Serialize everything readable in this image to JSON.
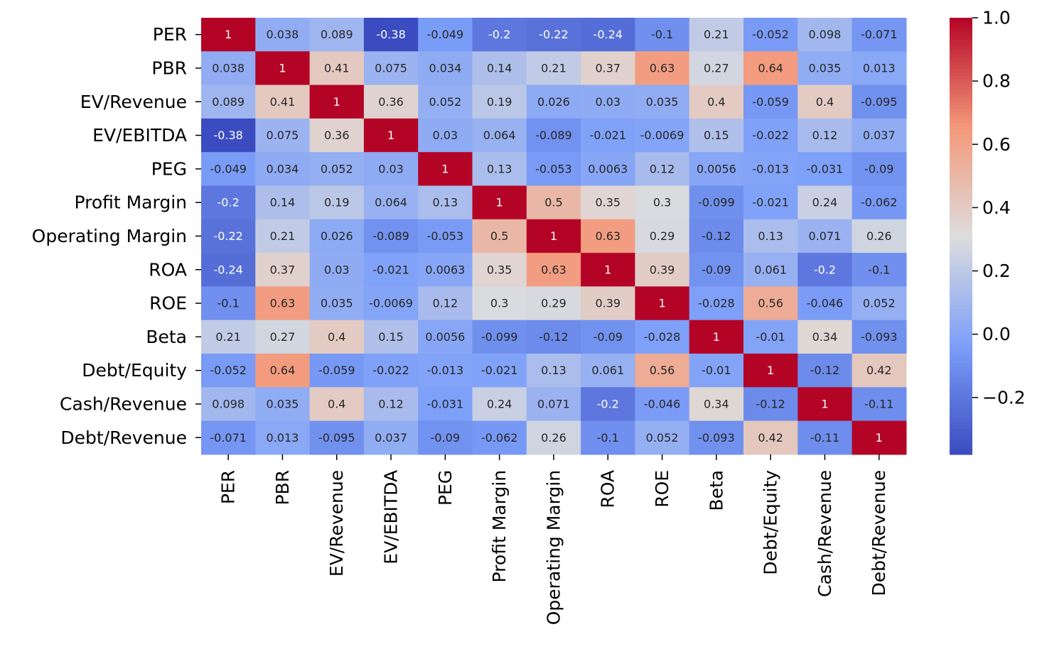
{
  "chart_data": {
    "type": "heatmap",
    "title": "",
    "labels": [
      "PER",
      "PBR",
      "EV/Revenue",
      "EV/EBITDA",
      "PEG",
      "Profit Margin",
      "Operating Margin",
      "ROA",
      "ROE",
      "Beta",
      "Debt/Equity",
      "Cash/Revenue",
      "Debt/Revenue"
    ],
    "matrix": [
      [
        1,
        0.038,
        0.089,
        -0.38,
        -0.049,
        -0.2,
        -0.22,
        -0.24,
        -0.1,
        0.21,
        -0.052,
        0.098,
        -0.071
      ],
      [
        0.038,
        1,
        0.41,
        0.075,
        0.034,
        0.14,
        0.21,
        0.37,
        0.63,
        0.27,
        0.64,
        0.035,
        0.013
      ],
      [
        0.089,
        0.41,
        1,
        0.36,
        0.052,
        0.19,
        0.026,
        0.03,
        0.035,
        0.4,
        -0.059,
        0.4,
        -0.095
      ],
      [
        -0.38,
        0.075,
        0.36,
        1,
        0.03,
        0.064,
        -0.089,
        -0.021,
        -0.0069,
        0.15,
        -0.022,
        0.12,
        0.037
      ],
      [
        -0.049,
        0.034,
        0.052,
        0.03,
        1,
        0.13,
        -0.053,
        0.0063,
        0.12,
        0.0056,
        -0.013,
        -0.031,
        -0.09
      ],
      [
        -0.2,
        0.14,
        0.19,
        0.064,
        0.13,
        1,
        0.5,
        0.35,
        0.3,
        -0.099,
        -0.021,
        0.24,
        -0.062
      ],
      [
        -0.22,
        0.21,
        0.026,
        -0.089,
        -0.053,
        0.5,
        1,
        0.63,
        0.29,
        -0.12,
        0.13,
        0.071,
        0.26
      ],
      [
        -0.24,
        0.37,
        0.03,
        -0.021,
        0.0063,
        0.35,
        0.63,
        1,
        0.39,
        -0.09,
        0.061,
        -0.2,
        -0.1
      ],
      [
        -0.1,
        0.63,
        0.035,
        -0.0069,
        0.12,
        0.3,
        0.29,
        0.39,
        1,
        -0.028,
        0.56,
        -0.046,
        0.052
      ],
      [
        0.21,
        0.27,
        0.4,
        0.15,
        0.0056,
        -0.099,
        -0.12,
        -0.09,
        -0.028,
        1,
        -0.01,
        0.34,
        -0.093
      ],
      [
        -0.052,
        0.64,
        -0.059,
        -0.022,
        -0.013,
        -0.021,
        0.13,
        0.061,
        0.56,
        -0.01,
        1,
        -0.12,
        0.42
      ],
      [
        0.098,
        0.035,
        0.4,
        0.12,
        -0.031,
        0.24,
        0.071,
        -0.2,
        -0.046,
        0.34,
        -0.12,
        1,
        -0.11
      ],
      [
        -0.071,
        0.013,
        -0.095,
        0.037,
        -0.09,
        -0.062,
        0.26,
        -0.1,
        0.052,
        -0.093,
        0.42,
        -0.11,
        1
      ]
    ],
    "colormap": "coolwarm",
    "vmin": -0.38,
    "vmax": 1.0,
    "colorbar": {
      "ticks": [
        1.0,
        0.8,
        0.6,
        0.4,
        0.2,
        0.0,
        -0.2
      ],
      "tick_labels": [
        "1.0",
        "0.8",
        "0.6",
        "0.4",
        "0.2",
        "0.0",
        "−0.2"
      ]
    },
    "annotations": true,
    "legend_position": "right"
  }
}
